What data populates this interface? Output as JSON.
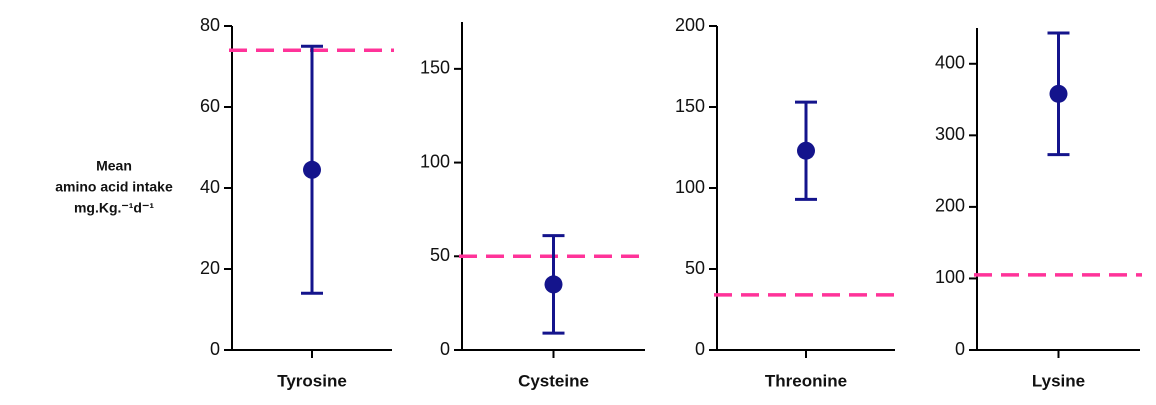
{
  "chart_data": [
    {
      "type": "errorbar",
      "y_label": [
        "Mean",
        "amino acid intake",
        "mg.Kg.⁻¹d⁻¹"
      ],
      "categories": [
        "Tyrosine"
      ],
      "values": [
        44.5
      ],
      "errors": [
        30.5
      ],
      "color": "#14148c",
      "reference_line": 74,
      "reference_color": "#ff3399",
      "ylim": [
        0,
        80
      ],
      "yticks": [
        0,
        20,
        40,
        60,
        80
      ]
    },
    {
      "type": "errorbar",
      "categories": [
        "Cysteine"
      ],
      "values": [
        35
      ],
      "errors": [
        26
      ],
      "color": "#14148c",
      "reference_line": 50,
      "reference_color": "#ff3399",
      "ylim": [
        0,
        175
      ],
      "yticks": [
        0,
        50,
        100,
        150
      ]
    },
    {
      "type": "errorbar",
      "categories": [
        "Threonine"
      ],
      "values": [
        123
      ],
      "errors": [
        30
      ],
      "color": "#14148c",
      "reference_line": 34,
      "reference_color": "#ff3399",
      "ylim": [
        0,
        200
      ],
      "yticks": [
        0,
        50,
        100,
        150,
        200
      ]
    },
    {
      "type": "errorbar",
      "categories": [
        "Lysine"
      ],
      "values": [
        358
      ],
      "errors": [
        85
      ],
      "color": "#14148c",
      "reference_line": 105,
      "reference_color": "#ff3399",
      "ylim": [
        0,
        450
      ],
      "yticks": [
        0,
        100,
        200,
        300,
        400
      ]
    }
  ]
}
